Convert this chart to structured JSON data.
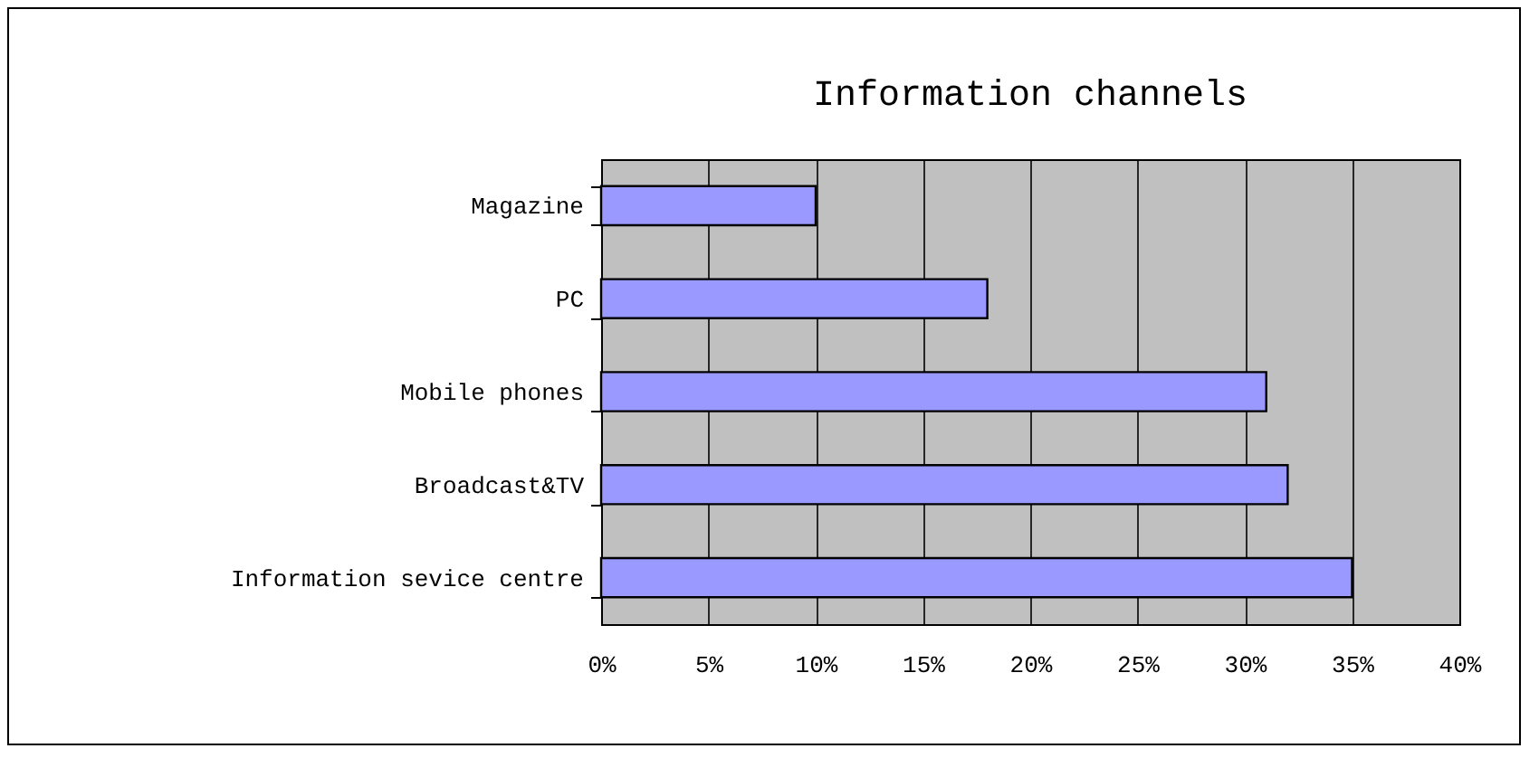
{
  "chart_data": {
    "type": "bar",
    "orientation": "horizontal",
    "title": "Information channels",
    "categories": [
      "Magazine",
      "PC",
      "Mobile phones",
      "Broadcast&TV",
      "Information sevice centre"
    ],
    "values": [
      10,
      18,
      31,
      32,
      35
    ],
    "color": "#9999ff",
    "xlim": [
      0,
      40
    ],
    "xticks": [
      {
        "value": 0,
        "label": "0%"
      },
      {
        "value": 5,
        "label": "5%"
      },
      {
        "value": 10,
        "label": "10%"
      },
      {
        "value": 15,
        "label": "15%"
      },
      {
        "value": 20,
        "label": "20%"
      },
      {
        "value": 25,
        "label": "25%"
      },
      {
        "value": 30,
        "label": "30%"
      },
      {
        "value": 35,
        "label": "35%"
      },
      {
        "value": 40,
        "label": "40%"
      }
    ],
    "grid": "x"
  }
}
